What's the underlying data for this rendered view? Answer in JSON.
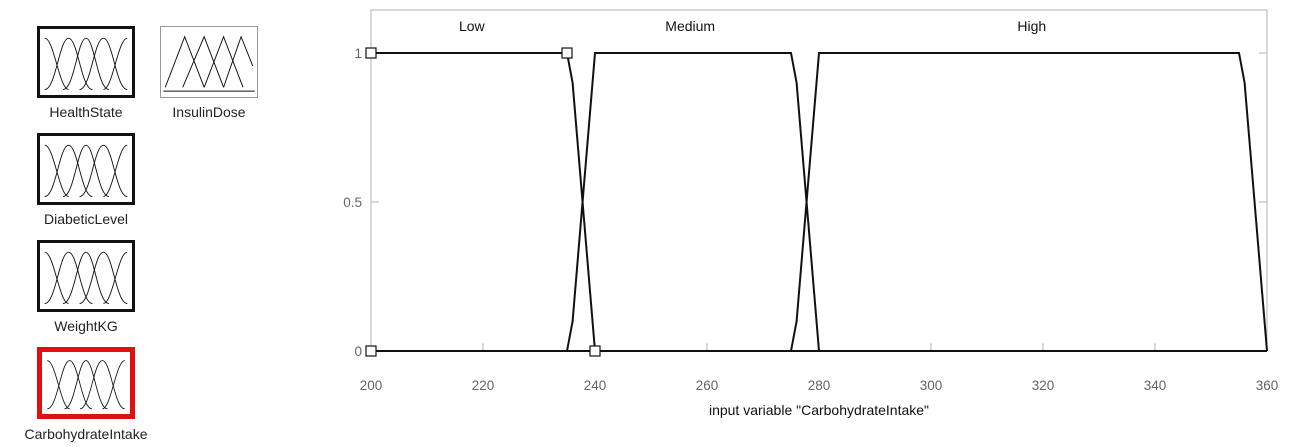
{
  "variables": {
    "inputs": [
      {
        "name": "HealthState",
        "selected": false
      },
      {
        "name": "DiabeticLevel",
        "selected": false
      },
      {
        "name": "WeightKG",
        "selected": false
      },
      {
        "name": "CarbohydrateIntake",
        "selected": true
      }
    ],
    "outputs": [
      {
        "name": "InsulinDose",
        "selected": false
      }
    ],
    "input_icon": "gaussian-mf-icon",
    "output_icon": "triangular-mf-icon",
    "selected_color": "#e01010"
  },
  "chart_data": {
    "type": "line",
    "xlabel": "input variable \"CarbohydrateIntake\"",
    "ylabel": "",
    "xlim": [
      200,
      360
    ],
    "ylim": [
      0,
      1
    ],
    "x_ticks": [
      200,
      220,
      240,
      260,
      280,
      300,
      320,
      340,
      360
    ],
    "y_ticks": [
      0,
      0.5,
      1
    ],
    "grid": false,
    "series": [
      {
        "name": "Low",
        "points": [
          [
            200,
            1
          ],
          [
            235,
            1
          ],
          [
            236,
            0.9
          ],
          [
            240,
            0
          ]
        ]
      },
      {
        "name": "Medium",
        "points": [
          [
            235,
            0
          ],
          [
            236,
            0.1
          ],
          [
            240,
            1
          ],
          [
            275,
            1
          ],
          [
            276,
            0.9
          ],
          [
            280,
            0
          ]
        ]
      },
      {
        "name": "High",
        "points": [
          [
            275,
            0
          ],
          [
            276,
            0.1
          ],
          [
            280,
            1
          ],
          [
            355,
            1
          ],
          [
            356,
            0.9
          ],
          [
            360,
            0
          ]
        ]
      }
    ],
    "baseline": [
      [
        200,
        0
      ],
      [
        360,
        0
      ]
    ],
    "markers": [
      [
        200,
        1
      ],
      [
        200,
        0
      ],
      [
        235,
        1
      ],
      [
        240,
        0
      ]
    ],
    "label_x": {
      "Low": 218,
      "Medium": 257,
      "High": 318
    }
  }
}
